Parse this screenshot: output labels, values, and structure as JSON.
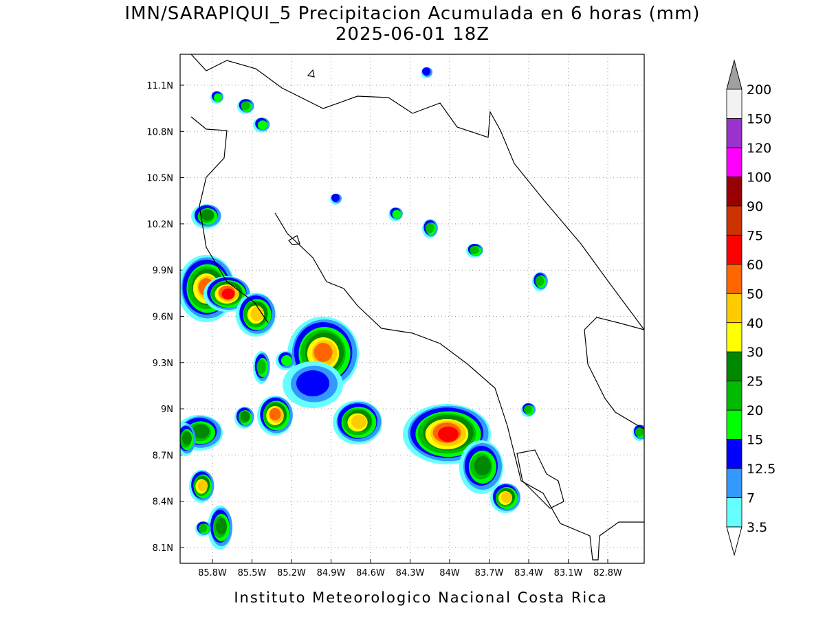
{
  "title": "IMN/SARAPIQUI_5 Precipitacion Acumulada en 6 horas (mm)",
  "subtitle": "2025-06-01 18Z",
  "footer": "Instituto Meteorologico Nacional Costa Rica",
  "map": {
    "longitude_labels": [
      "85.8W",
      "85.5W",
      "85.2W",
      "84.9W",
      "84.6W",
      "84.3W",
      "84W",
      "83.7W",
      "83.4W",
      "83.1W",
      "82.8W"
    ],
    "latitude_labels": [
      "11.1N",
      "10.8N",
      "10.5N",
      "10.2N",
      "9.9N",
      "9.6N",
      "9.3N",
      "9N",
      "8.7N",
      "8.4N",
      "8.1N"
    ]
  },
  "colorbar": {
    "levels": [
      200,
      150,
      120,
      100,
      90,
      75,
      60,
      50,
      40,
      30,
      25,
      20,
      15,
      12.5,
      7,
      3.5
    ],
    "colors": [
      "#f2f2f2",
      "#9933cc",
      "#ff00ff",
      "#990000",
      "#cc3300",
      "#ff0000",
      "#ff6600",
      "#ffcc00",
      "#ffff00",
      "#008800",
      "#00bb00",
      "#00ff00",
      "#0000ff",
      "#3399ff",
      "#66ffff"
    ],
    "over_color": "#a0a0a0",
    "under_color": "#ffffff"
  }
}
